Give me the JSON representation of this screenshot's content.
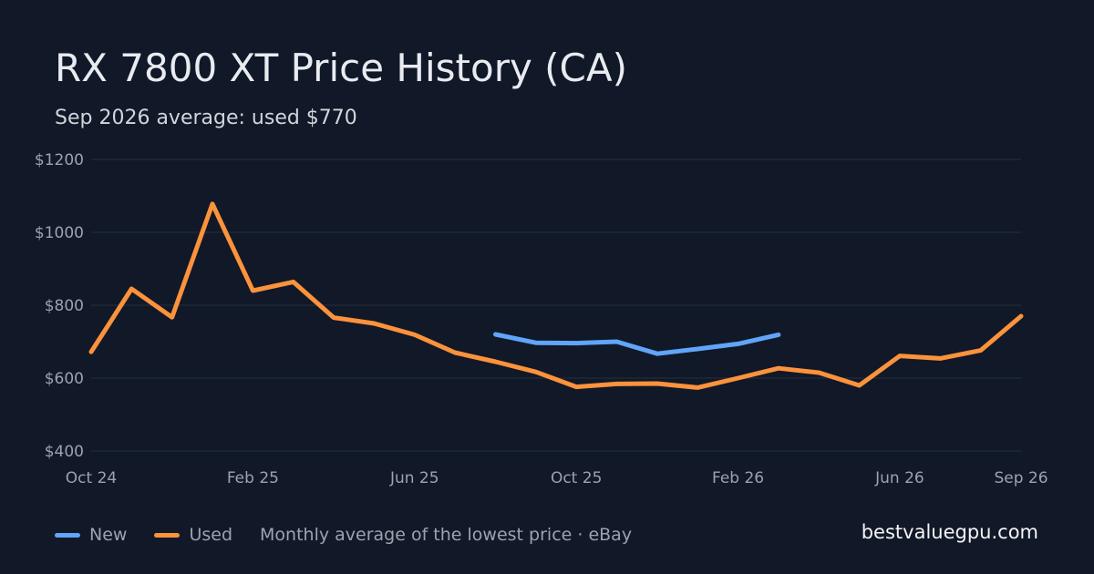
{
  "title": "RX 7800 XT Price History (CA)",
  "subtitle": "Sep 2026 average: used $770",
  "footer": {
    "legend_new": "New",
    "legend_used": "Used",
    "source_note": "Monthly average of the lowest price · eBay",
    "site": "bestvaluegpu.com"
  },
  "colors": {
    "background": "#111827",
    "new": "#60a5fa",
    "used": "#fb923c",
    "grid": "#1f2937"
  },
  "chart_data": {
    "type": "line",
    "title": "RX 7800 XT Price History (CA)",
    "subtitle": "Sep 2026 average: used $770",
    "x": [
      "2024-10",
      "2024-11",
      "2024-12",
      "2025-01",
      "2025-02",
      "2025-03",
      "2025-04",
      "2025-05",
      "2025-06",
      "2025-07",
      "2025-08",
      "2025-09",
      "2025-10",
      "2025-11",
      "2025-12",
      "2026-01",
      "2026-02",
      "2026-03",
      "2026-04",
      "2026-05",
      "2026-06",
      "2026-07",
      "2026-08",
      "2026-09"
    ],
    "x_tick_labels": [
      "Oct 24",
      "Feb 25",
      "Jun 25",
      "Oct 25",
      "Feb 26",
      "Jun 26",
      "Sep 26"
    ],
    "x_tick_months": [
      "2024-10",
      "2025-02",
      "2025-06",
      "2025-10",
      "2026-02",
      "2026-06",
      "2026-09"
    ],
    "y_tick_labels": [
      "$1200",
      "$1000",
      "$800",
      "$600",
      "$400"
    ],
    "y_ticks": [
      1200,
      1000,
      800,
      600,
      400
    ],
    "ylim": [
      400,
      1200
    ],
    "grid": true,
    "legend_position": "bottom-left",
    "series": [
      {
        "name": "New",
        "color": "#60a5fa",
        "values": [
          null,
          null,
          null,
          null,
          null,
          null,
          null,
          null,
          null,
          null,
          720,
          697,
          696,
          700,
          667,
          680,
          694,
          719,
          null,
          null,
          null,
          null,
          null,
          null
        ]
      },
      {
        "name": "Used",
        "color": "#fb923c",
        "values": [
          672,
          845,
          767,
          1078,
          840,
          864,
          766,
          750,
          719,
          670,
          645,
          617,
          576,
          584,
          585,
          574,
          600,
          627,
          615,
          580,
          661,
          654,
          676,
          770
        ]
      }
    ]
  }
}
